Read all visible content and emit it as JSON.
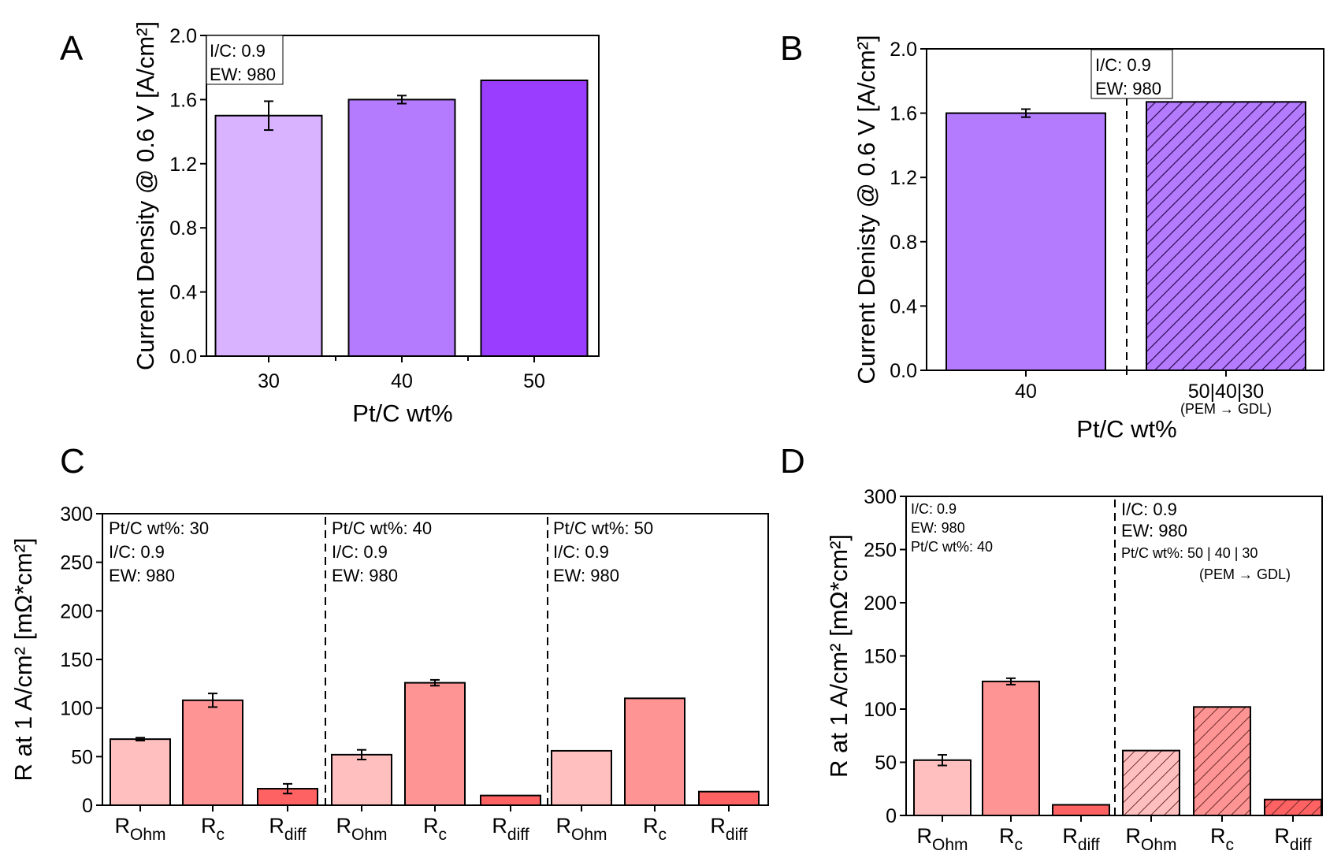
{
  "panels": {
    "a": "A",
    "b": "B",
    "c": "C",
    "d": "D"
  },
  "chart_data": [
    {
      "id": "A",
      "type": "bar",
      "title": "",
      "xlabel": "Pt/C wt%",
      "ylabel": "Current Density @ 0.6 V [A/cm²]",
      "ylim": [
        0,
        2.0
      ],
      "yticks": [
        "0.0",
        "0.4",
        "0.8",
        "1.2",
        "1.6",
        "2.0"
      ],
      "categories": [
        "30",
        "40",
        "50"
      ],
      "values": [
        1.5,
        1.6,
        1.72
      ],
      "errors": [
        0.09,
        0.025,
        0
      ],
      "colors": [
        "#d9b3ff",
        "#b57bff",
        "#9b3dff"
      ],
      "annotation": [
        "I/C: 0.9",
        "EW: 980"
      ]
    },
    {
      "id": "B",
      "type": "bar",
      "xlabel": "Pt/C wt%",
      "ylabel": "Current Denisty @ 0.6 V [A/cm²]",
      "ylim": [
        0,
        2.0
      ],
      "yticks": [
        "0.0",
        "0.4",
        "0.8",
        "1.2",
        "1.6",
        "2.0"
      ],
      "categories": [
        "40",
        "50|40|30"
      ],
      "category_sublabel": "(PEM → GDL)",
      "values": [
        1.6,
        1.67
      ],
      "errors": [
        0.025,
        0
      ],
      "colors": [
        "#b57bff",
        "#b57bff"
      ],
      "hatched": [
        false,
        true
      ],
      "annotation": [
        "I/C: 0.9",
        "EW: 980"
      ]
    },
    {
      "id": "C",
      "type": "bar",
      "xlabel": "",
      "ylabel": "R at 1 A/cm² [mΩ*cm²]",
      "ylim": [
        0,
        300
      ],
      "yticks": [
        "0",
        "50",
        "100",
        "150",
        "200",
        "250",
        "300"
      ],
      "groups": [
        {
          "annotation": [
            "Pt/C wt%: 30",
            "I/C: 0.9",
            "EW: 980"
          ],
          "values": [
            68,
            108,
            17
          ],
          "errors": [
            1.5,
            7,
            5
          ]
        },
        {
          "annotation": [
            "Pt/C wt%: 40",
            "I/C: 0.9",
            "EW: 980"
          ],
          "values": [
            52,
            126,
            10
          ],
          "errors": [
            5,
            3,
            0
          ]
        },
        {
          "annotation": [
            "Pt/C wt%: 50",
            "I/C: 0.9",
            "EW: 980"
          ],
          "values": [
            56,
            110,
            14
          ],
          "errors": [
            0,
            0,
            0
          ]
        }
      ],
      "categories": [
        {
          "main": "R",
          "sub": "Ohm"
        },
        {
          "main": "R",
          "sub": "c"
        },
        {
          "main": "R",
          "sub": "diff"
        }
      ],
      "colors": [
        "#ffbfbf",
        "#ff9494",
        "#ff6262"
      ]
    },
    {
      "id": "D",
      "type": "bar",
      "xlabel": "",
      "ylabel": "R at 1 A/cm² [mΩ*cm²]",
      "ylim": [
        0,
        300
      ],
      "yticks": [
        "0",
        "50",
        "100",
        "150",
        "200",
        "250",
        "300"
      ],
      "groups": [
        {
          "annotation": [
            "I/C: 0.9",
            "EW: 980",
            "Pt/C wt%: 40"
          ],
          "values": [
            52,
            126,
            10
          ],
          "errors": [
            5,
            3,
            0
          ],
          "hatched": false
        },
        {
          "annotation": [
            "I/C: 0.9",
            "EW: 980",
            "Pt/C wt%: 50 | 40 | 30",
            "(PEM → GDL)"
          ],
          "values": [
            61,
            102,
            15
          ],
          "errors": [
            0,
            0,
            0
          ],
          "hatched": true
        }
      ],
      "categories": [
        {
          "main": "R",
          "sub": "Ohm"
        },
        {
          "main": "R",
          "sub": "c"
        },
        {
          "main": "R",
          "sub": "diff"
        }
      ],
      "colors": [
        "#ffbfbf",
        "#ff9494",
        "#ff6262"
      ]
    }
  ]
}
